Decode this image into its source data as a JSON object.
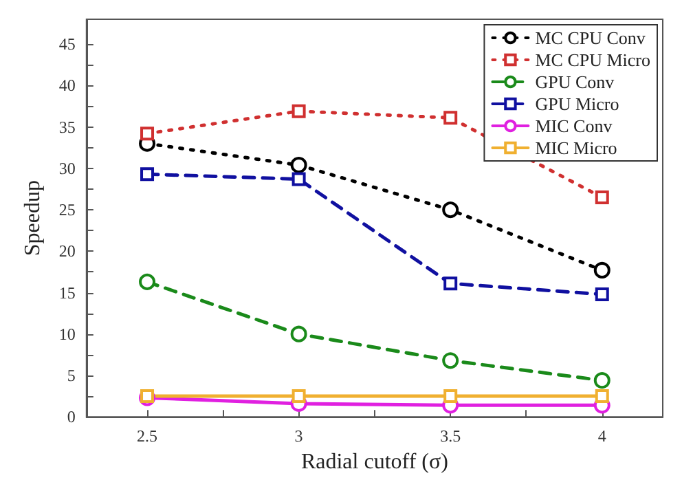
{
  "chart_data": {
    "type": "line",
    "xlabel": "Radial cutoff (σ)",
    "ylabel": "Speedup",
    "x": [
      2.5,
      3,
      3.5,
      4
    ],
    "series": [
      {
        "name": "MC CPU Conv",
        "color": "#000000",
        "marker": "circle",
        "line_style": "dotted",
        "values": [
          33,
          30.4,
          25,
          17.7
        ]
      },
      {
        "name": "MC CPU Micro",
        "color": "#d03030",
        "marker": "square",
        "line_style": "dotted",
        "values": [
          34.2,
          36.9,
          36.1,
          26.5
        ]
      },
      {
        "name": "GPU Conv",
        "color": "#1a8a1a",
        "marker": "circle",
        "line_style": "dashed",
        "values": [
          16.3,
          10,
          6.8,
          4.4
        ]
      },
      {
        "name": "GPU Micro",
        "color": "#1010a0",
        "marker": "square",
        "line_style": "dashed",
        "values": [
          29.3,
          28.7,
          16.1,
          14.8
        ]
      },
      {
        "name": "MIC Conv",
        "color": "#e020e0",
        "marker": "circle",
        "line_style": "solid",
        "values": [
          2.3,
          1.6,
          1.4,
          1.4
        ]
      },
      {
        "name": "MIC Micro",
        "color": "#f0b030",
        "marker": "square",
        "line_style": "solid",
        "values": [
          2.5,
          2.5,
          2.5,
          2.5
        ]
      }
    ],
    "xlim": [
      2.3,
      4.2
    ],
    "xticks": [
      2.5,
      {
        "value": 2.75,
        "label": null
      },
      3,
      {
        "value": 3.25,
        "label": null
      },
      3.5,
      {
        "value": 3.75,
        "label": null
      },
      4
    ],
    "ylim": [
      0,
      48
    ],
    "yticks": [
      0,
      {
        "value": 2.5,
        "label": null
      },
      5,
      {
        "value": 7.5,
        "label": null
      },
      10,
      {
        "value": 12.5,
        "label": null
      },
      15,
      {
        "value": 17.5,
        "label": null
      },
      20,
      {
        "value": 22.5,
        "label": null
      },
      25,
      {
        "value": 27.5,
        "label": null
      },
      30,
      {
        "value": 32.5,
        "label": null
      },
      35,
      {
        "value": 37.5,
        "label": null
      },
      40,
      {
        "value": 42.5,
        "label": null
      },
      45
    ],
    "grid": false,
    "legend": "top right"
  }
}
